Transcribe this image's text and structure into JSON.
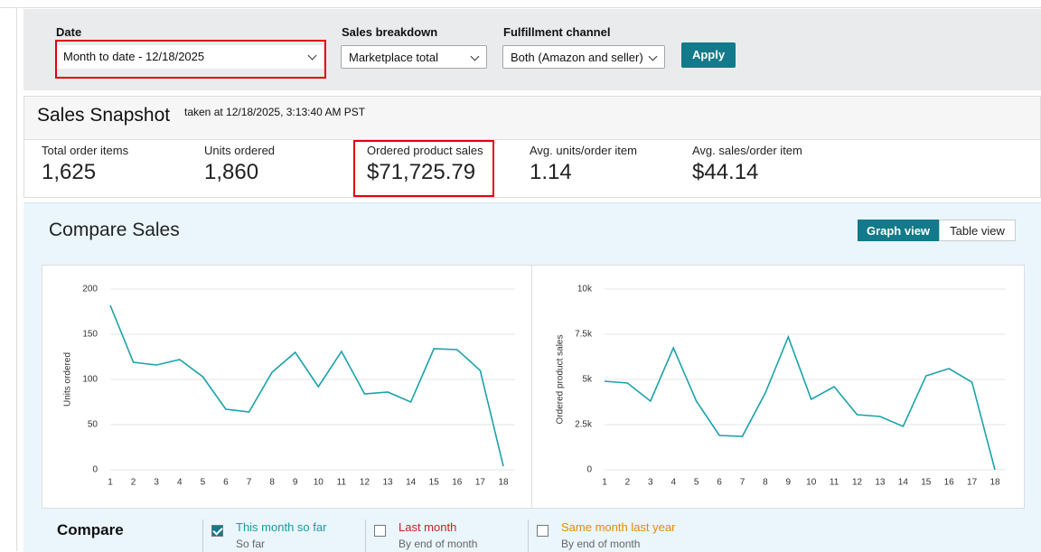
{
  "filters": {
    "date": {
      "label": "Date",
      "value": "Month to date - 12/18/2025"
    },
    "breakdown": {
      "label": "Sales breakdown",
      "value": "Marketplace total"
    },
    "channel": {
      "label": "Fulfillment channel",
      "value": "Both (Amazon and seller)"
    },
    "apply": "Apply"
  },
  "snapshot": {
    "title": "Sales Snapshot",
    "taken": "taken at 12/18/2025, 3:13:40 AM PST",
    "metrics": [
      {
        "label": "Total order items",
        "value": "1,625"
      },
      {
        "label": "Units ordered",
        "value": "1,860"
      },
      {
        "label": "Ordered product sales",
        "value": "$71,725.79"
      },
      {
        "label": "Avg. units/order item",
        "value": "1.14"
      },
      {
        "label": "Avg. sales/order item",
        "value": "$44.14"
      }
    ]
  },
  "compare_sales": {
    "title": "Compare Sales",
    "views": [
      "Graph view",
      "Table view"
    ]
  },
  "chart_data": [
    {
      "type": "line",
      "y_label": "Units ordered",
      "color": "#1aa3a9",
      "x": [
        1,
        2,
        3,
        4,
        5,
        6,
        7,
        8,
        9,
        10,
        11,
        12,
        13,
        14,
        15,
        16,
        17,
        18
      ],
      "values": [
        182,
        119,
        116,
        122,
        103,
        67,
        64,
        108,
        130,
        92,
        131,
        84,
        86,
        75,
        134,
        133,
        110,
        4
      ],
      "xlim": [
        1,
        18
      ],
      "xticks": [
        1,
        2,
        3,
        4,
        5,
        6,
        7,
        8,
        9,
        10,
        11,
        12,
        13,
        14,
        15,
        16,
        17,
        18
      ],
      "ylim": [
        0,
        200
      ],
      "yticks": [
        0,
        50,
        100,
        150,
        200
      ],
      "grid": true
    },
    {
      "type": "line",
      "y_label": "Ordered product sales",
      "color": "#1aa3a9",
      "x": [
        1,
        2,
        3,
        4,
        5,
        6,
        7,
        8,
        9,
        10,
        11,
        12,
        13,
        14,
        15,
        16,
        17,
        18
      ],
      "values": [
        4900,
        4800,
        3800,
        6750,
        3800,
        1900,
        1850,
        4250,
        7350,
        3900,
        4600,
        3050,
        2950,
        2400,
        5200,
        5600,
        4850,
        0
      ],
      "xlim": [
        1,
        18
      ],
      "xticks": [
        1,
        2,
        3,
        4,
        5,
        6,
        7,
        8,
        9,
        10,
        11,
        12,
        13,
        14,
        15,
        16,
        17,
        18
      ],
      "ylim": [
        0,
        10000
      ],
      "yticks": [
        0,
        {
          "value": 2500,
          "label": "2.5k"
        },
        {
          "value": 5000,
          "label": "5k"
        },
        {
          "value": 7500,
          "label": "7.5k"
        },
        {
          "value": 10000,
          "label": "10k"
        }
      ],
      "grid": true
    }
  ],
  "compare": {
    "title": "Compare",
    "options": [
      {
        "name": "This month so far",
        "sub": "So far",
        "checked": true,
        "color": "#1a9ba1"
      },
      {
        "name": "Last month",
        "sub": "By end of month",
        "checked": false,
        "color": "#cc1f1f"
      },
      {
        "name": "Same month last year",
        "sub": "By end of month",
        "checked": false,
        "color": "#e68a00"
      }
    ]
  }
}
